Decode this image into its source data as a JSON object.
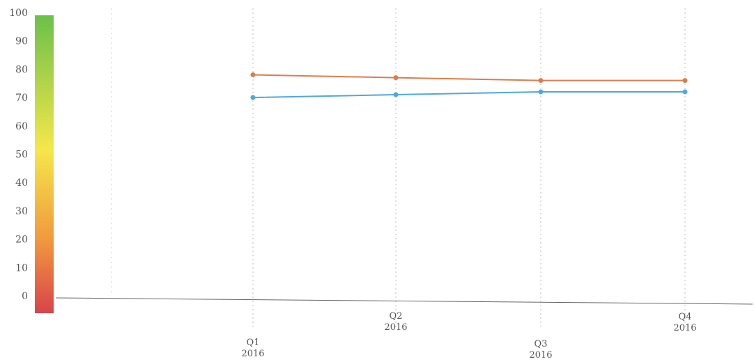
{
  "chart_data": {
    "type": "line",
    "categories": [
      {
        "quarter": "Q1",
        "year": "2016"
      },
      {
        "quarter": "Q2",
        "year": "2016"
      },
      {
        "quarter": "Q3",
        "year": "2016"
      },
      {
        "quarter": "Q4",
        "year": "2016"
      }
    ],
    "series": [
      {
        "color": "#e07b4a",
        "values": [
          78,
          77,
          76,
          76
        ],
        "labels": [
          "",
          "",
          "",
          ""
        ]
      },
      {
        "color": "#4ea7e0",
        "values": [
          70,
          71,
          72,
          72
        ],
        "labels": [
          "",
          "",
          "",
          ""
        ]
      }
    ],
    "ylim": [
      0,
      100
    ],
    "yticks": [
      "0",
      "10",
      "20",
      "30",
      "40",
      "50",
      "60",
      "70",
      "80",
      "90",
      "100"
    ],
    "color_scale": {
      "low": "#d9434a",
      "mid": "#f5e74a",
      "high": "#6cc04a"
    },
    "grid": true
  }
}
